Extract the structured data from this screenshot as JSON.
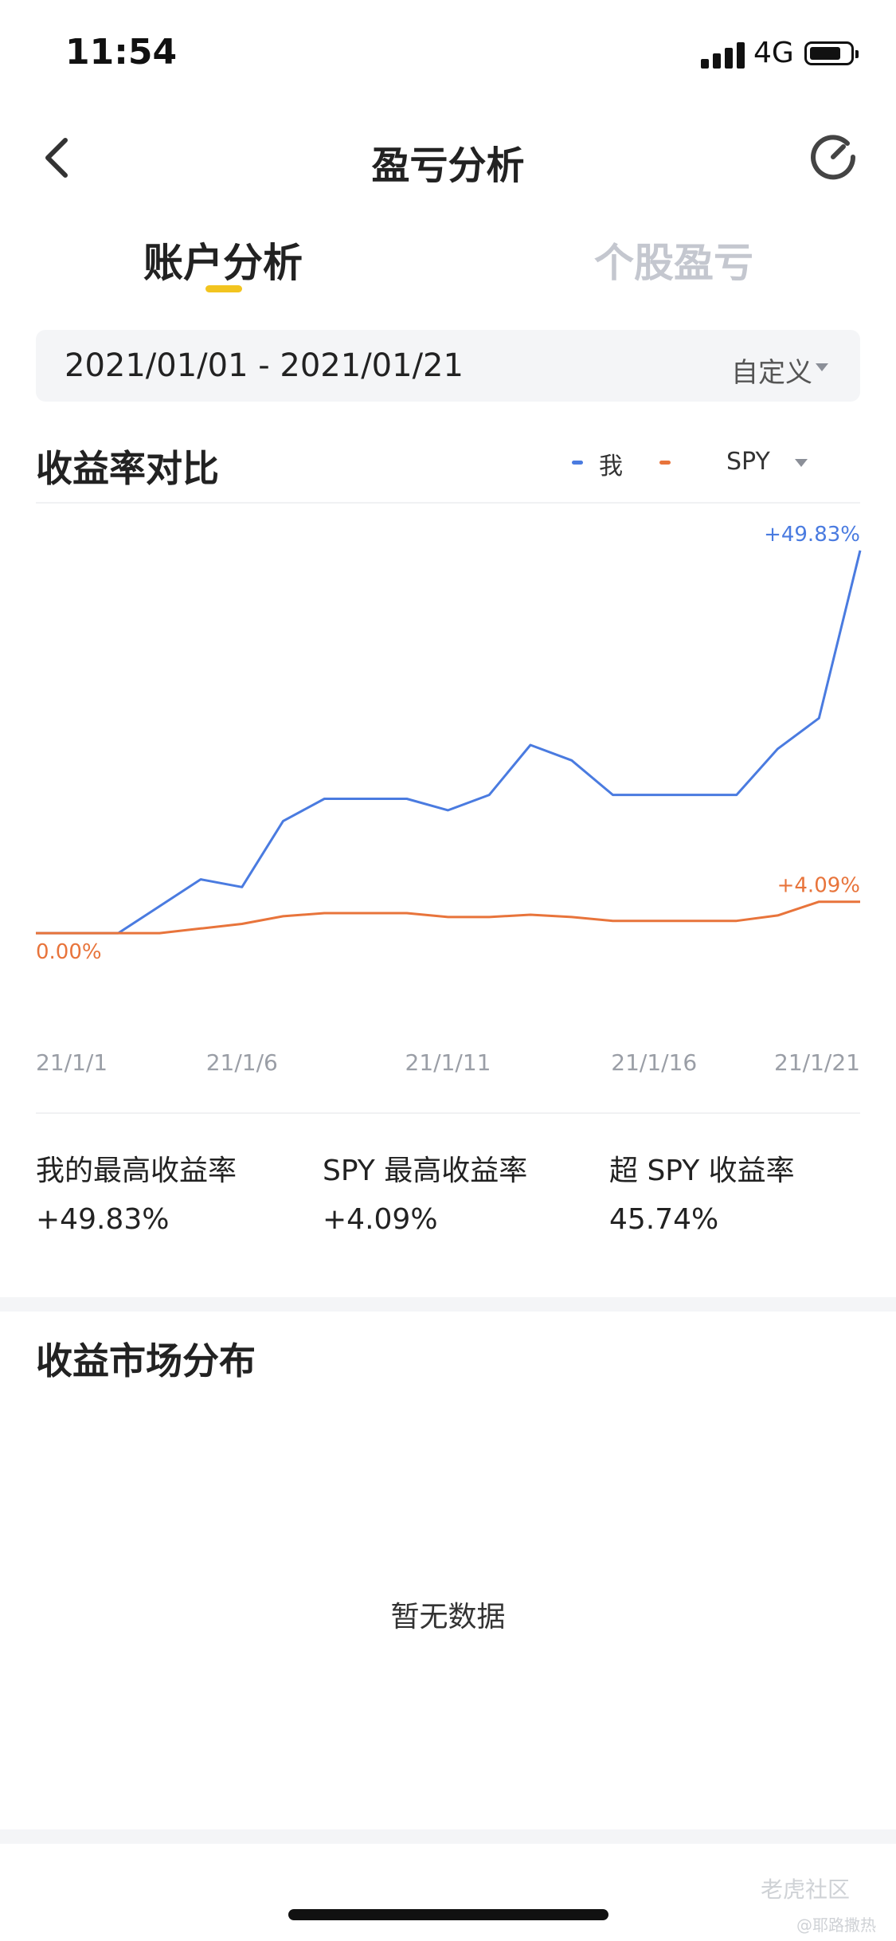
{
  "status": {
    "time": "11:54",
    "network": "4G"
  },
  "header": {
    "title": "盈亏分析"
  },
  "tabs": [
    {
      "label": "账户分析",
      "active": true
    },
    {
      "label": "个股盈亏",
      "active": false
    }
  ],
  "date_filter": {
    "range": "2021/01/01 - 2021/01/21",
    "mode": "自定义"
  },
  "comparison": {
    "title": "收益率对比",
    "legend": [
      {
        "name": "我",
        "color": "#4a7be0"
      },
      {
        "name": "SPY",
        "color": "#e8743b"
      }
    ]
  },
  "chart_data": {
    "type": "line",
    "x": [
      "21/1/1",
      "21/1/2",
      "21/1/3",
      "21/1/4",
      "21/1/5",
      "21/1/6",
      "21/1/7",
      "21/1/8",
      "21/1/9",
      "21/1/10",
      "21/1/11",
      "21/1/12",
      "21/1/13",
      "21/1/14",
      "21/1/15",
      "21/1/16",
      "21/1/17",
      "21/1/18",
      "21/1/19",
      "21/1/20",
      "21/1/21"
    ],
    "xticks": [
      "21/1/1",
      "21/1/6",
      "21/1/11",
      "21/1/16",
      "21/1/21"
    ],
    "series": [
      {
        "name": "我",
        "color": "#4a7be0",
        "values": [
          0,
          0,
          0,
          3.5,
          7.0,
          6.0,
          14.6,
          17.5,
          17.5,
          17.5,
          16.0,
          18.0,
          24.5,
          22.5,
          18.0,
          18.0,
          18.0,
          18.0,
          24.0,
          28.0,
          49.83
        ]
      },
      {
        "name": "SPY",
        "color": "#e8743b",
        "values": [
          0,
          0,
          0,
          0,
          0.6,
          1.2,
          2.2,
          2.6,
          2.6,
          2.6,
          2.1,
          2.1,
          2.4,
          2.1,
          1.6,
          1.6,
          1.6,
          1.6,
          2.3,
          4.09,
          4.09
        ]
      }
    ],
    "annotations": {
      "start": "0.00%",
      "me_end": "+49.83%",
      "spy_end": "+4.09%"
    },
    "ylim": [
      -3,
      52
    ]
  },
  "stats": [
    {
      "label": "我的最高收益率",
      "value": "+49.83%"
    },
    {
      "label": "SPY 最高收益率",
      "value": "+4.09%"
    },
    {
      "label": "超 SPY 收益率",
      "value": "45.74%"
    }
  ],
  "distribution": {
    "title": "收益市场分布",
    "empty_text": "暂无数据"
  },
  "watermark": {
    "brand": "老虎社区",
    "user": "@耶路撒热"
  }
}
